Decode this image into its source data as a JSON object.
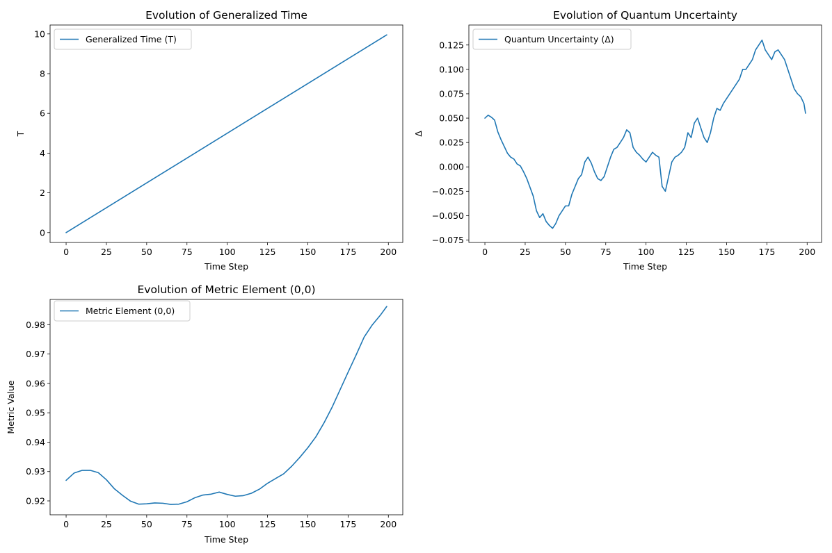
{
  "chart_data": [
    {
      "type": "line",
      "title": "Evolution of Generalized Time",
      "xlabel": "Time Step",
      "ylabel": "T",
      "xlim": [
        -9.95,
        208.95
      ],
      "ylim": [
        -0.4975,
        10.4475
      ],
      "xticks": [
        0,
        25,
        50,
        75,
        100,
        125,
        150,
        175,
        200
      ],
      "yticks": [
        0,
        2,
        4,
        6,
        8,
        10
      ],
      "ytick_labels": [
        "0",
        "2",
        "4",
        "6",
        "8",
        "10"
      ],
      "legend_position": "upper left",
      "grid": false,
      "color": "#1f77b4",
      "series": [
        {
          "name": "Generalized Time (T)",
          "x": [
            0,
            199
          ],
          "y": [
            0,
            9.95
          ]
        }
      ]
    },
    {
      "type": "line",
      "title": "Evolution of Quantum Uncertainty",
      "xlabel": "Time Step",
      "ylabel": "Δ",
      "xlim": [
        -9.95,
        208.95
      ],
      "ylim": [
        -0.0775,
        0.1455
      ],
      "xticks": [
        0,
        25,
        50,
        75,
        100,
        125,
        150,
        175,
        200
      ],
      "yticks": [
        -0.075,
        -0.05,
        -0.025,
        0,
        0.025,
        0.05,
        0.075,
        0.1,
        0.125
      ],
      "ytick_labels": [
        "−0.075",
        "−0.050",
        "−0.025",
        "0.000",
        "0.025",
        "0.050",
        "0.075",
        "0.100",
        "0.125"
      ],
      "legend_position": "upper left",
      "grid": false,
      "color": "#1f77b4",
      "series": [
        {
          "name": "Quantum Uncertainty (Δ)",
          "x": [
            0,
            2,
            4,
            6,
            8,
            10,
            12,
            14,
            16,
            18,
            20,
            22,
            24,
            26,
            28,
            30,
            32,
            34,
            36,
            38,
            40,
            42,
            44,
            46,
            48,
            50,
            52,
            54,
            56,
            58,
            60,
            62,
            64,
            66,
            68,
            70,
            72,
            74,
            76,
            78,
            80,
            82,
            84,
            86,
            88,
            90,
            92,
            94,
            96,
            98,
            100,
            102,
            104,
            106,
            108,
            110,
            112,
            114,
            116,
            118,
            120,
            122,
            124,
            126,
            128,
            130,
            132,
            134,
            136,
            138,
            140,
            142,
            144,
            146,
            148,
            150,
            152,
            154,
            156,
            158,
            160,
            162,
            164,
            166,
            168,
            170,
            172,
            174,
            176,
            178,
            180,
            182,
            184,
            186,
            188,
            190,
            192,
            194,
            196,
            198,
            199
          ],
          "y": [
            0.05,
            0.053,
            0.051,
            0.048,
            0.036,
            0.028,
            0.021,
            0.014,
            0.01,
            0.008,
            0.003,
            0.001,
            -0.005,
            -0.012,
            -0.021,
            -0.03,
            -0.045,
            -0.052,
            -0.048,
            -0.056,
            -0.06,
            -0.063,
            -0.058,
            -0.05,
            -0.045,
            -0.04,
            -0.04,
            -0.028,
            -0.02,
            -0.012,
            -0.008,
            0.005,
            0.01,
            0.004,
            -0.005,
            -0.012,
            -0.014,
            -0.01,
            0.0,
            0.01,
            0.018,
            0.02,
            0.025,
            0.03,
            0.038,
            0.035,
            0.02,
            0.015,
            0.012,
            0.008,
            0.005,
            0.01,
            0.015,
            0.012,
            0.01,
            -0.02,
            -0.025,
            -0.01,
            0.005,
            0.01,
            0.012,
            0.015,
            0.02,
            0.035,
            0.03,
            0.045,
            0.05,
            0.04,
            0.03,
            0.025,
            0.035,
            0.05,
            0.06,
            0.058,
            0.065,
            0.07,
            0.075,
            0.08,
            0.085,
            0.09,
            0.1,
            0.1,
            0.105,
            0.11,
            0.12,
            0.125,
            0.13,
            0.12,
            0.115,
            0.11,
            0.118,
            0.12,
            0.115,
            0.11,
            0.1,
            0.09,
            0.08,
            0.075,
            0.072,
            0.065,
            0.055
          ]
        }
      ]
    },
    {
      "type": "line",
      "title": "Evolution of Metric Element (0,0)",
      "xlabel": "Time Step",
      "ylabel": "Metric Value",
      "xlim": [
        -9.95,
        208.95
      ],
      "ylim": [
        0.91527,
        0.98859
      ],
      "xticks": [
        0,
        25,
        50,
        75,
        100,
        125,
        150,
        175,
        200
      ],
      "yticks": [
        0.92,
        0.93,
        0.94,
        0.95,
        0.96,
        0.97,
        0.98
      ],
      "ytick_labels": [
        "0.92",
        "0.93",
        "0.94",
        "0.95",
        "0.96",
        "0.97",
        "0.98"
      ],
      "legend_position": "upper left",
      "grid": false,
      "color": "#1f77b4",
      "series": [
        {
          "name": "Metric Element (0,0)",
          "x": [
            0,
            5,
            10,
            15,
            20,
            25,
            30,
            35,
            40,
            45,
            50,
            55,
            60,
            65,
            70,
            75,
            80,
            85,
            90,
            95,
            100,
            105,
            110,
            115,
            120,
            125,
            130,
            135,
            140,
            145,
            150,
            155,
            160,
            165,
            170,
            175,
            180,
            185,
            190,
            195,
            199
          ],
          "y": [
            0.927,
            0.9295,
            0.9304,
            0.9304,
            0.9296,
            0.9272,
            0.9241,
            0.9219,
            0.9199,
            0.9189,
            0.919,
            0.9193,
            0.9192,
            0.9188,
            0.9189,
            0.9197,
            0.9211,
            0.922,
            0.9223,
            0.923,
            0.9222,
            0.9216,
            0.9218,
            0.9226,
            0.924,
            0.926,
            0.9276,
            0.9292,
            0.9318,
            0.9348,
            0.9381,
            0.9418,
            0.9465,
            0.9518,
            0.9578,
            0.9638,
            0.9697,
            0.9758,
            0.9799,
            0.9832,
            0.9862
          ]
        }
      ]
    }
  ]
}
